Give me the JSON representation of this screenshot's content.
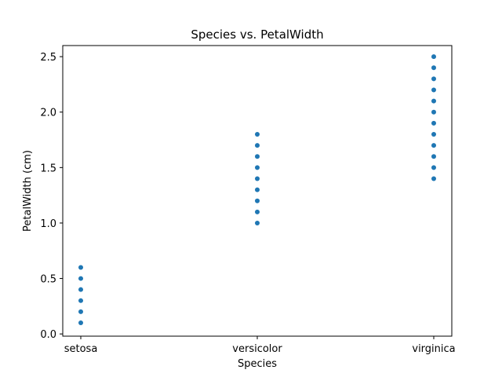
{
  "chart_data": {
    "type": "scatter",
    "title": "Species vs. PetalWidth",
    "xlabel": "Species",
    "ylabel": "PetalWidth (cm)",
    "categories": [
      "setosa",
      "versicolor",
      "virginica"
    ],
    "yticks": [
      "0.0",
      "0.5",
      "1.0",
      "1.5",
      "2.0",
      "2.5"
    ],
    "ylim": [
      -0.02,
      2.6
    ],
    "grid": false,
    "marker_color": "#1f77b4",
    "series": [
      {
        "category": "setosa",
        "values": [
          0.1,
          0.2,
          0.3,
          0.4,
          0.5,
          0.6
        ]
      },
      {
        "category": "versicolor",
        "values": [
          1.0,
          1.1,
          1.2,
          1.3,
          1.4,
          1.5,
          1.6,
          1.7,
          1.8
        ]
      },
      {
        "category": "virginica",
        "values": [
          1.4,
          1.5,
          1.6,
          1.7,
          1.8,
          1.9,
          2.0,
          2.1,
          2.2,
          2.3,
          2.4,
          2.5
        ]
      }
    ]
  }
}
